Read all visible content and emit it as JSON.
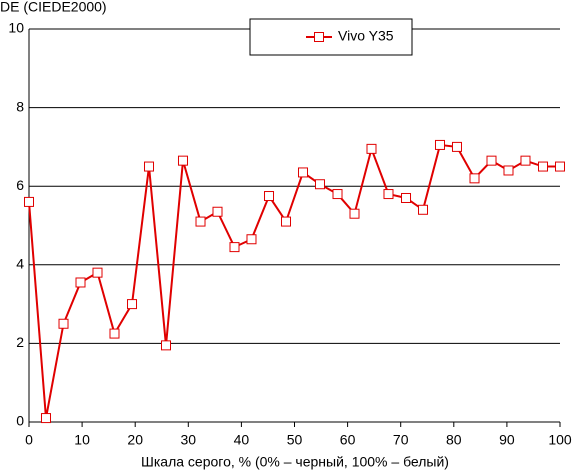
{
  "chart_data": {
    "type": "line",
    "y_axis_label": "DE (CIEDE2000)",
    "x_axis_label": "Шкала серого, % (0% – черный, 100% – белый)",
    "xlim": [
      0,
      100
    ],
    "xticks": [
      0,
      10,
      20,
      30,
      40,
      50,
      60,
      70,
      80,
      90,
      100
    ],
    "ylim": [
      0,
      10
    ],
    "yticks": [
      0,
      2,
      4,
      6,
      8,
      10
    ],
    "grid": true,
    "legend": "top",
    "x": [
      0,
      3.2,
      6.5,
      9.7,
      12.9,
      16.1,
      19.4,
      22.6,
      25.8,
      29.0,
      32.3,
      35.5,
      38.7,
      41.9,
      45.2,
      48.4,
      51.6,
      54.8,
      58.1,
      61.3,
      64.5,
      67.7,
      71.0,
      74.2,
      77.4,
      80.6,
      83.9,
      87.1,
      90.3,
      93.5,
      96.8,
      100
    ],
    "series": [
      {
        "name": "Vivo Y35",
        "color": "#e00000",
        "values": [
          5.6,
          0.1,
          2.5,
          3.55,
          3.8,
          2.25,
          3.0,
          6.5,
          1.95,
          6.65,
          5.1,
          5.35,
          4.45,
          4.65,
          5.75,
          5.1,
          6.35,
          6.05,
          5.8,
          5.3,
          6.95,
          5.8,
          5.7,
          5.4,
          7.05,
          7.0,
          6.2,
          6.65,
          6.4,
          6.65,
          6.5,
          6.5
        ]
      }
    ]
  }
}
